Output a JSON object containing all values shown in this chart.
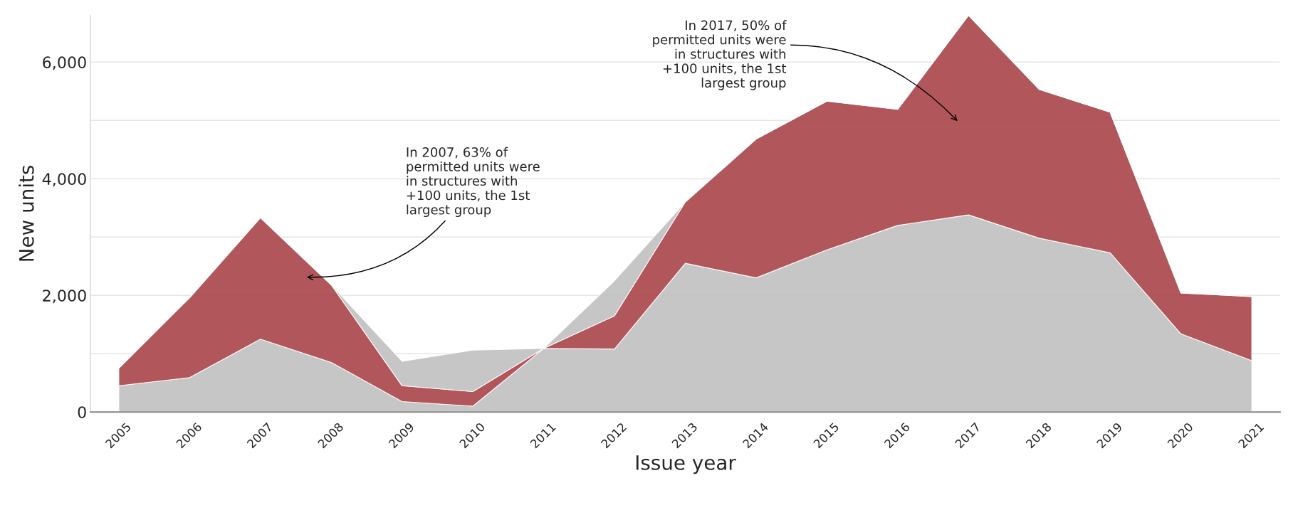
{
  "chart_data": {
    "type": "area",
    "stacked": true,
    "xlabel": "Issue year",
    "ylabel": "New units",
    "categories": [
      "2005",
      "2006",
      "2007",
      "2008",
      "2009",
      "2010",
      "2011",
      "2012",
      "2013",
      "2014",
      "2015",
      "2016",
      "2017",
      "2018",
      "2019",
      "2020",
      "2021"
    ],
    "series": [
      {
        "color": "#c0c0c0",
        "values": [
          450,
          590,
          1250,
          850,
          180,
          100,
          1090,
          1080,
          2550,
          2300,
          2780,
          3200,
          3380,
          2980,
          2730,
          1340,
          880
        ]
      },
      {
        "color": "#a84448",
        "values": [
          300,
          1370,
          2080,
          1330,
          270,
          250,
          0,
          570,
          1050,
          2380,
          2550,
          1990,
          3420,
          2550,
          2410,
          700,
          1100
        ]
      },
      {
        "color": "#c0c0c0",
        "values": [
          0,
          0,
          0,
          0,
          420,
          710,
          0,
          600,
          0,
          0,
          0,
          0,
          0,
          0,
          0,
          0,
          0
        ]
      }
    ],
    "ylim": [
      0,
      6800
    ],
    "yticks": [
      0,
      {
        "value": 1000,
        "label": null
      },
      {
        "value": 2000,
        "label": "2,000"
      },
      {
        "value": 3000,
        "label": null
      },
      {
        "value": 4000,
        "label": "4,000"
      },
      {
        "value": 5000,
        "label": null
      },
      {
        "value": 6000,
        "label": "6,000"
      }
    ],
    "grid": "y",
    "annotations": [
      "In 2007, 63% of\npermitted units were\nin structures with\n+100 units, the 1st\nlargest group",
      "In 2017, 50% of\npermitted units were\nin structures with\n+100 units, the 1st\nlargest group"
    ]
  }
}
